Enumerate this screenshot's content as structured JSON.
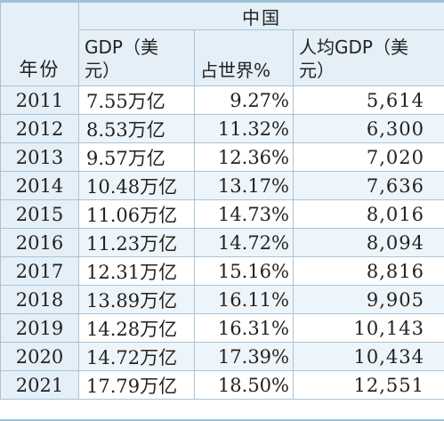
{
  "table": {
    "group_header": "中国",
    "headers": {
      "year": "年份",
      "gdp_line1": "GDP（美",
      "gdp_line2": "元）",
      "share": "占世界%",
      "per_capita_line1": "人均GDP（美",
      "per_capita_line2": "元）"
    },
    "rows": [
      {
        "year": "2011",
        "gdp": "7.55万亿",
        "share": "9.27%",
        "per_capita": "5,614"
      },
      {
        "year": "2012",
        "gdp": "8.53万亿",
        "share": "11.32%",
        "per_capita": "6,300"
      },
      {
        "year": "2013",
        "gdp": "9.57万亿",
        "share": "12.36%",
        "per_capita": "7,020"
      },
      {
        "year": "2014",
        "gdp": "10.48万亿",
        "share": "13.17%",
        "per_capita": "7,636"
      },
      {
        "year": "2015",
        "gdp": "11.06万亿",
        "share": "14.73%",
        "per_capita": "8,016"
      },
      {
        "year": "2016",
        "gdp": "11.23万亿",
        "share": "14.72%",
        "per_capita": "8,094"
      },
      {
        "year": "2017",
        "gdp": "12.31万亿",
        "share": "15.16%",
        "per_capita": "8,816"
      },
      {
        "year": "2018",
        "gdp": "13.89万亿",
        "share": "16.11%",
        "per_capita": "9,905"
      },
      {
        "year": "2019",
        "gdp": "14.28万亿",
        "share": "16.31%",
        "per_capita": "10,143"
      },
      {
        "year": "2020",
        "gdp": "14.72万亿",
        "share": "17.39%",
        "per_capita": "10,434"
      },
      {
        "year": "2021",
        "gdp": "17.79万亿",
        "share": "18.50%",
        "per_capita": "12,551"
      }
    ]
  },
  "colors": {
    "header_bg": "#e4eff7",
    "border": "#a7c4d8",
    "stripe": "#eef5fa"
  }
}
